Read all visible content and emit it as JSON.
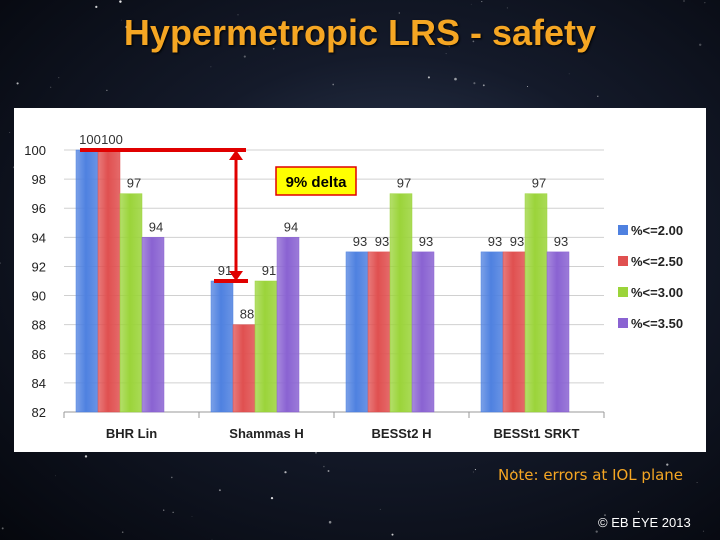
{
  "title": "Hypermetropic LRS - safety",
  "note": "Note: errors at IOL plane",
  "copyright": "© EB EYE 2013",
  "annotation": {
    "text": "9% delta",
    "from_value": 100,
    "to_value": 91,
    "color": "#e00000",
    "box_color": "#ffff00"
  },
  "colors": {
    "title": "#f5a623",
    "series": [
      "#4f81e0",
      "#e05050",
      "#9bd43a",
      "#8a63d2"
    ]
  },
  "chart_data": {
    "type": "bar",
    "title": "",
    "xlabel": "",
    "ylabel": "",
    "ylim": [
      82,
      100
    ],
    "yticks": [
      82,
      84,
      86,
      88,
      90,
      92,
      94,
      96,
      98,
      100
    ],
    "grid": true,
    "legend_position": "right",
    "categories": [
      "BHR Lin",
      "Shammas H",
      "BESSt2 H",
      "BESSt1 SRKT"
    ],
    "series": [
      {
        "name": "%<=2.00",
        "values": [
          100,
          91,
          93,
          93
        ]
      },
      {
        "name": "%<=2.50",
        "values": [
          100,
          88,
          93,
          93
        ]
      },
      {
        "name": "%<=3.00",
        "values": [
          97,
          91,
          97,
          97
        ]
      },
      {
        "name": "%<=3.50",
        "values": [
          94,
          94,
          93,
          93
        ]
      }
    ]
  }
}
